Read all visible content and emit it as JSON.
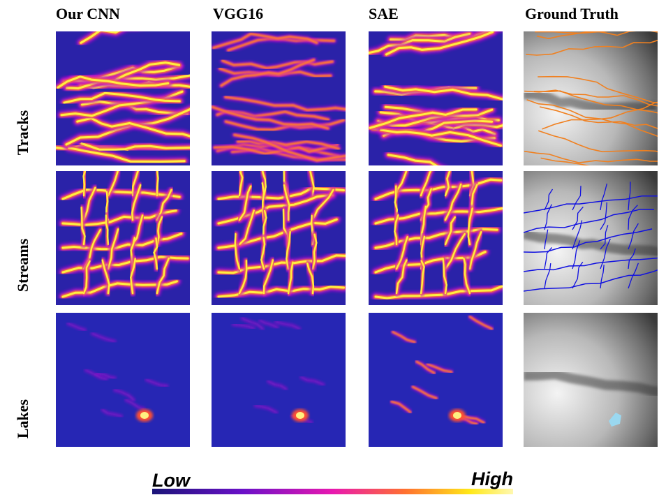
{
  "columns": [
    "Our CNN",
    "VGG16",
    "SAE",
    "Ground Truth"
  ],
  "rows": [
    "Tracks",
    "Streams",
    "Lakes"
  ],
  "colorbar": {
    "low": "Low",
    "high": "High"
  }
}
